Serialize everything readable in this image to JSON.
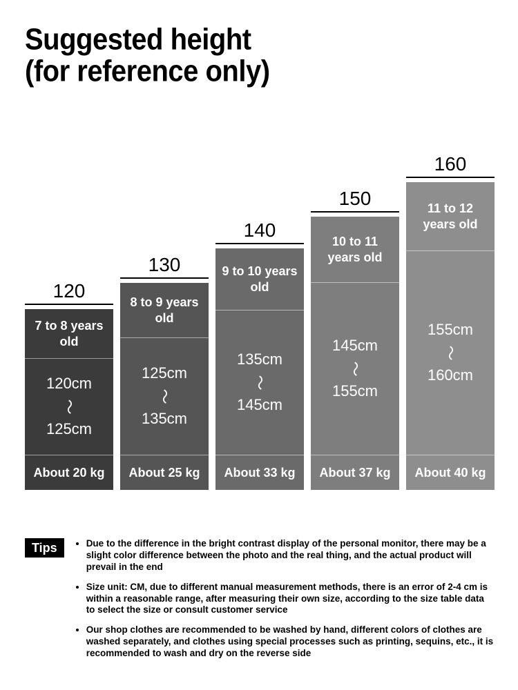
{
  "title_line1": "Suggested height",
  "title_line2": "(for reference only)",
  "title_fontsize": 40,
  "chart": {
    "type": "bar",
    "size_num_fontsize": 28,
    "age_fontsize": 18,
    "range_fontsize": 22,
    "weight_fontsize": 18,
    "weight_box_height": 50,
    "columns": [
      {
        "size": "120",
        "age": "7 to 8 years old",
        "range_from": "120cm",
        "range_to": "125cm",
        "weight": "About 20 kg",
        "color": "#3b3b3b",
        "age_h": 72,
        "range_h": 140
      },
      {
        "size": "130",
        "age": "8 to 9 years old",
        "range_from": "125cm",
        "range_to": "135cm",
        "weight": "About 25 kg",
        "color": "#555555",
        "age_h": 80,
        "range_h": 170
      },
      {
        "size": "140",
        "age": "9 to 10 years old",
        "range_from": "135cm",
        "range_to": "145cm",
        "weight": "About 33 kg",
        "color": "#6a6a6a",
        "age_h": 90,
        "range_h": 210
      },
      {
        "size": "150",
        "age": "10 to 11 years old",
        "range_from": "145cm",
        "range_to": "155cm",
        "weight": "About 37 kg",
        "color": "#7e7e7e",
        "age_h": 96,
        "range_h": 250
      },
      {
        "size": "160",
        "age": "11 to 12 years old",
        "range_from": "155cm",
        "range_to": "160cm",
        "weight": "About 40 kg",
        "color": "#8e8e8e",
        "age_h": 100,
        "range_h": 296
      }
    ]
  },
  "tips": {
    "label": "Tips",
    "label_fontsize": 18,
    "item_fontsize": 13.5,
    "items": [
      "Due to the difference in the bright contrast display of the personal monitor, there may be a slight color difference between the photo and the real thing, and the actual product will prevail in the end",
      "Size unit: CM, due to different manual measurement methods, there is an error of 2-4 cm is within a reasonable range, after measuring their own size, according to the size table data to select the size or consult customer service",
      "Our shop clothes are recommended to be washed by hand, different colors of clothes are washed separately, and clothes using special processes such as printing, sequins, etc., it is recommended to wash and dry on the reverse side"
    ]
  }
}
